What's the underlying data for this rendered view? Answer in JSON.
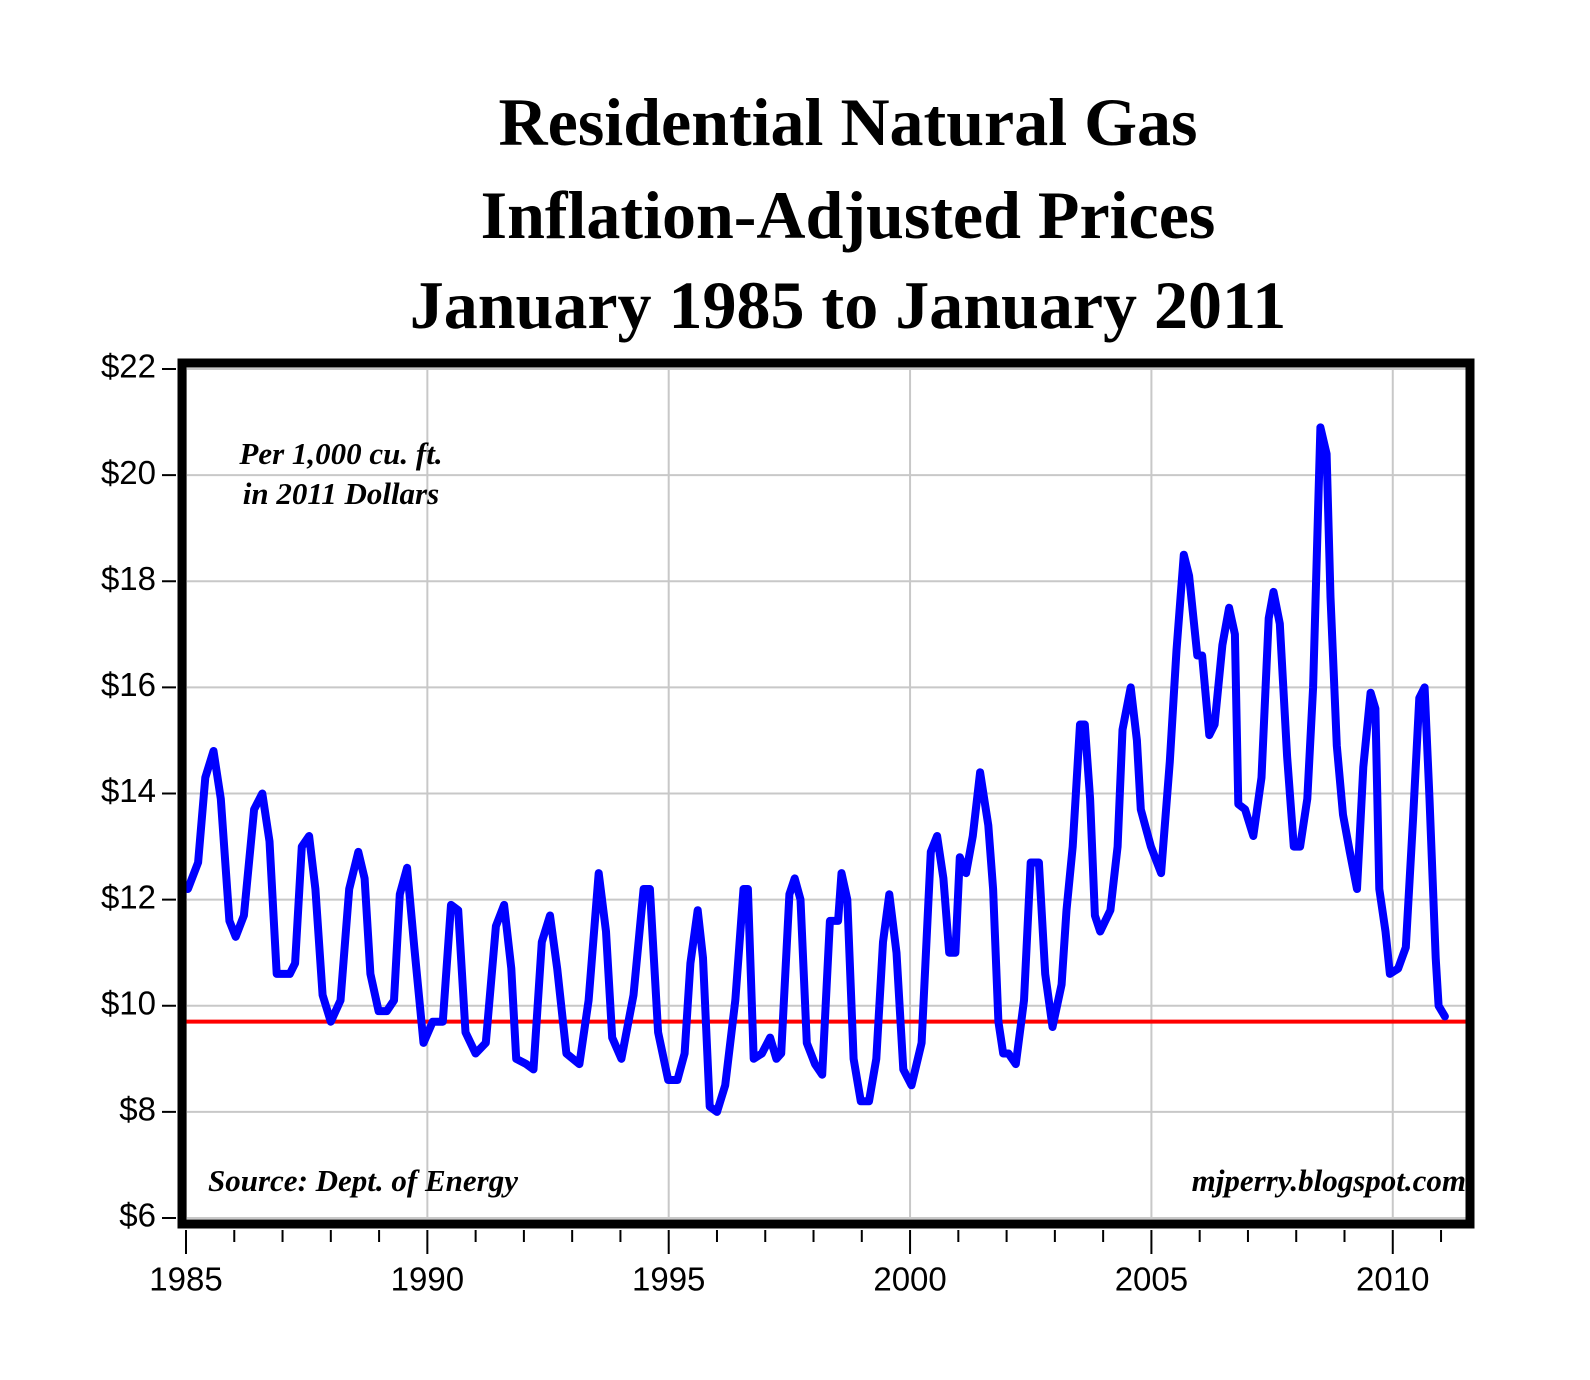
{
  "chart_data": {
    "type": "line",
    "title": [
      "Residential Natural Gas",
      "Inflation-Adjusted Prices",
      "January 1985 to January 2011"
    ],
    "annotations": [
      "Per 1,000 cu. ft.",
      "in 2011 Dollars",
      "Source: Dept. of Energy",
      "mjperry.blogspot.com"
    ],
    "color": "#0000ff",
    "reference_line": {
      "value": 9.7,
      "color": "#ff0000"
    },
    "grid": true,
    "xlim": [
      1985,
      2011.6
    ],
    "xticks": [
      1985,
      1990,
      1995,
      2000,
      2005,
      2010
    ],
    "xticks_minor": [
      1986,
      1987,
      1988,
      1989,
      1991,
      1992,
      1993,
      1994,
      1996,
      1997,
      1998,
      1999,
      2001,
      2002,
      2003,
      2004,
      2006,
      2007,
      2008,
      2009,
      2011
    ],
    "ylim": [
      6,
      22
    ],
    "yticks": [
      {
        "value": 6,
        "label": "$6"
      },
      {
        "value": 8,
        "label": "$8"
      },
      {
        "value": 10,
        "label": "$10"
      },
      {
        "value": 12,
        "label": "$12"
      },
      {
        "value": 14,
        "label": "$14"
      },
      {
        "value": 16,
        "label": "$16"
      },
      {
        "value": 18,
        "label": "$18"
      },
      {
        "value": 20,
        "label": "$20"
      },
      {
        "value": 22,
        "label": "$22"
      }
    ],
    "x": [
      1985.04,
      1985.25,
      1985.4,
      1985.57,
      1985.72,
      1985.9,
      1986.03,
      1986.2,
      1986.41,
      1986.58,
      1986.73,
      1986.88,
      1987.15,
      1987.26,
      1987.4,
      1987.55,
      1987.68,
      1987.83,
      1988.0,
      1988.2,
      1988.38,
      1988.57,
      1988.7,
      1988.82,
      1988.99,
      1989.16,
      1989.31,
      1989.43,
      1989.58,
      1989.73,
      1989.92,
      1990.11,
      1990.32,
      1990.49,
      1990.64,
      1990.79,
      1991.0,
      1991.21,
      1991.42,
      1991.59,
      1991.74,
      1991.84,
      1992.05,
      1992.2,
      1992.37,
      1992.54,
      1992.69,
      1992.88,
      1993.15,
      1993.34,
      1993.55,
      1993.7,
      1993.83,
      1994.02,
      1994.27,
      1994.48,
      1994.61,
      1994.78,
      1994.99,
      1995.18,
      1995.33,
      1995.45,
      1995.6,
      1995.71,
      1995.85,
      1996.0,
      1996.17,
      1996.38,
      1996.55,
      1996.64,
      1996.76,
      1996.93,
      1997.1,
      1997.23,
      1997.33,
      1997.5,
      1997.61,
      1997.73,
      1997.86,
      1998.03,
      1998.18,
      1998.34,
      1998.51,
      1998.58,
      1998.7,
      1998.83,
      1998.98,
      1999.15,
      1999.3,
      1999.44,
      1999.57,
      1999.72,
      1999.86,
      2000.03,
      2000.24,
      2000.43,
      2000.56,
      2000.69,
      2000.81,
      2000.94,
      2001.03,
      2001.16,
      2001.3,
      2001.45,
      2001.62,
      2001.72,
      2001.83,
      2001.93,
      2002.04,
      2002.19,
      2002.36,
      2002.5,
      2002.67,
      2002.8,
      2002.95,
      2003.14,
      2003.24,
      2003.37,
      2003.52,
      2003.62,
      2003.73,
      2003.83,
      2003.94,
      2004.15,
      2004.3,
      2004.4,
      2004.57,
      2004.7,
      2004.78,
      2004.99,
      2005.2,
      2005.38,
      2005.52,
      2005.67,
      2005.78,
      2005.95,
      2006.05,
      2006.2,
      2006.31,
      2006.47,
      2006.61,
      2006.73,
      2006.8,
      2006.94,
      2007.11,
      2007.28,
      2007.43,
      2007.53,
      2007.66,
      2007.81,
      2007.95,
      2008.08,
      2008.23,
      2008.35,
      2008.5,
      2008.63,
      2008.71,
      2008.84,
      2008.97,
      2009.11,
      2009.26,
      2009.39,
      2009.54,
      2009.64,
      2009.72,
      2009.85,
      2009.94,
      2010.11,
      2010.27,
      2010.42,
      2010.55,
      2010.66,
      2010.76,
      2010.89,
      2010.95,
      2011.08
    ],
    "values": [
      12.2,
      12.7,
      14.3,
      14.8,
      13.9,
      11.6,
      11.3,
      11.7,
      13.7,
      14.0,
      13.1,
      10.6,
      10.6,
      10.8,
      13.0,
      13.2,
      12.2,
      10.2,
      9.7,
      10.1,
      12.2,
      12.9,
      12.4,
      10.6,
      9.9,
      9.9,
      10.1,
      12.1,
      12.6,
      11.1,
      9.3,
      9.7,
      9.7,
      11.9,
      11.8,
      9.5,
      9.1,
      9.3,
      11.5,
      11.9,
      10.7,
      9.0,
      8.9,
      8.8,
      11.2,
      11.7,
      10.7,
      9.1,
      8.9,
      10.1,
      12.5,
      11.4,
      9.4,
      9.0,
      10.2,
      12.2,
      12.2,
      9.5,
      8.6,
      8.6,
      9.1,
      10.8,
      11.8,
      10.9,
      8.1,
      8.0,
      8.5,
      10.1,
      12.2,
      12.2,
      9.0,
      9.1,
      9.4,
      9.0,
      9.1,
      12.1,
      12.4,
      12.0,
      9.3,
      8.9,
      8.7,
      11.6,
      11.6,
      12.5,
      12.0,
      9.0,
      8.2,
      8.2,
      9.0,
      11.2,
      12.1,
      11.0,
      8.8,
      8.5,
      9.3,
      12.9,
      13.2,
      12.4,
      11.0,
      11.0,
      12.8,
      12.5,
      13.2,
      14.4,
      13.4,
      12.2,
      9.7,
      9.1,
      9.1,
      8.9,
      10.1,
      12.7,
      12.7,
      10.6,
      9.6,
      10.4,
      11.8,
      13.0,
      15.3,
      15.3,
      13.9,
      11.7,
      11.4,
      11.8,
      13.0,
      15.2,
      16.0,
      15.0,
      13.7,
      13.0,
      12.5,
      14.6,
      16.7,
      18.5,
      18.1,
      16.6,
      16.6,
      15.1,
      15.3,
      16.8,
      17.5,
      17.0,
      13.8,
      13.7,
      13.2,
      14.3,
      17.3,
      17.8,
      17.2,
      14.7,
      13.0,
      13.0,
      13.9,
      16.0,
      20.9,
      20.4,
      17.7,
      14.9,
      13.6,
      12.9,
      12.2,
      14.5,
      15.9,
      15.6,
      12.2,
      11.4,
      10.6,
      10.7,
      11.1,
      13.5,
      15.8,
      16.0,
      13.9,
      10.9,
      10.0,
      9.8
    ]
  }
}
